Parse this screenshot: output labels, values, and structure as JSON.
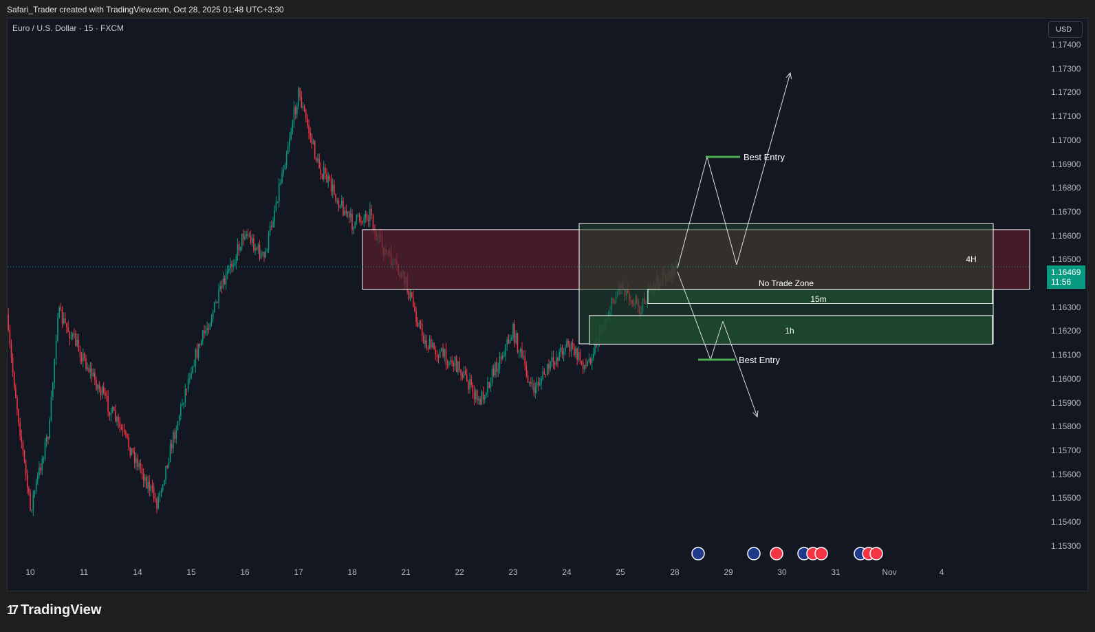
{
  "header": {
    "credit": "Safari_Trader created with TradingView.com, Oct 28, 2025 01:48 UTC+3:30"
  },
  "symbol_title": "Euro / U.S. Dollar · 15 · FXCM",
  "currency_button": "USD",
  "last_price": {
    "value": "1.16469",
    "countdown": "11:56"
  },
  "brand": {
    "logo_text": "TradingView"
  },
  "colors": {
    "background": "#131722",
    "up": "#089981",
    "down": "#f23645",
    "zone_red": "#5a1f2c",
    "zone_green": "#1f4a2e",
    "entry_green": "#4caf50"
  },
  "chart_data": {
    "type": "candlestick",
    "title": "Euro / U.S. Dollar · 15 · FXCM",
    "ylim": [
      1.1525,
      1.1745
    ],
    "y_ticks": [
      "1.17400",
      "1.17300",
      "1.17200",
      "1.17100",
      "1.17000",
      "1.16900",
      "1.16800",
      "1.16700",
      "1.16600",
      "1.16500",
      "1.16400",
      "1.16300",
      "1.16200",
      "1.16100",
      "1.16000",
      "1.15900",
      "1.15800",
      "1.15700",
      "1.15600",
      "1.15500",
      "1.15400",
      "1.15300"
    ],
    "x_ticks": [
      "10",
      "11",
      "14",
      "15",
      "16",
      "17",
      "18",
      "21",
      "22",
      "23",
      "24",
      "25",
      "28",
      "29",
      "30",
      "31",
      "Nov",
      "4"
    ],
    "price_path": [
      {
        "x": "Oct 9",
        "y": 1.1627
      },
      {
        "x": "Oct 10",
        "y": 1.1545
      },
      {
        "x": "Oct 10",
        "y": 1.158
      },
      {
        "x": "Oct 11",
        "y": 1.1628
      },
      {
        "x": "Oct 13",
        "y": 1.1615
      },
      {
        "x": "Oct 14",
        "y": 1.1565
      },
      {
        "x": "Oct 14",
        "y": 1.1548
      },
      {
        "x": "Oct 15",
        "y": 1.1605
      },
      {
        "x": "Oct 16",
        "y": 1.1662
      },
      {
        "x": "Oct 16",
        "y": 1.165
      },
      {
        "x": "Oct 17",
        "y": 1.172
      },
      {
        "x": "Oct 17",
        "y": 1.169
      },
      {
        "x": "Oct 18",
        "y": 1.1665
      },
      {
        "x": "Oct 18",
        "y": 1.167
      },
      {
        "x": "Oct 20",
        "y": 1.166
      },
      {
        "x": "Oct 21",
        "y": 1.164
      },
      {
        "x": "Oct 21",
        "y": 1.1615
      },
      {
        "x": "Oct 22",
        "y": 1.1605
      },
      {
        "x": "Oct 22",
        "y": 1.159
      },
      {
        "x": "Oct 23",
        "y": 1.162
      },
      {
        "x": "Oct 23",
        "y": 1.1595
      },
      {
        "x": "Oct 24",
        "y": 1.1615
      },
      {
        "x": "Oct 24",
        "y": 1.1605
      },
      {
        "x": "Oct 25",
        "y": 1.164
      },
      {
        "x": "Oct 25",
        "y": 1.163
      },
      {
        "x": "Oct 27",
        "y": 1.164
      },
      {
        "x": "Oct 28",
        "y": 1.1647
      }
    ],
    "zones": [
      {
        "label": "4H",
        "from": 1.16375,
        "to": 1.16625,
        "style": "red"
      },
      {
        "label": "15m",
        "from": 1.16315,
        "to": 1.16375,
        "style": "green"
      },
      {
        "label": "1h",
        "from": 1.16145,
        "to": 1.16265,
        "style": "green"
      }
    ],
    "annotations": [
      {
        "text": "No Trade Zone"
      },
      {
        "text": "Best Entry",
        "price": 1.1693
      },
      {
        "text": "Best Entry",
        "price": 1.1608
      }
    ],
    "last_price": 1.16469
  }
}
